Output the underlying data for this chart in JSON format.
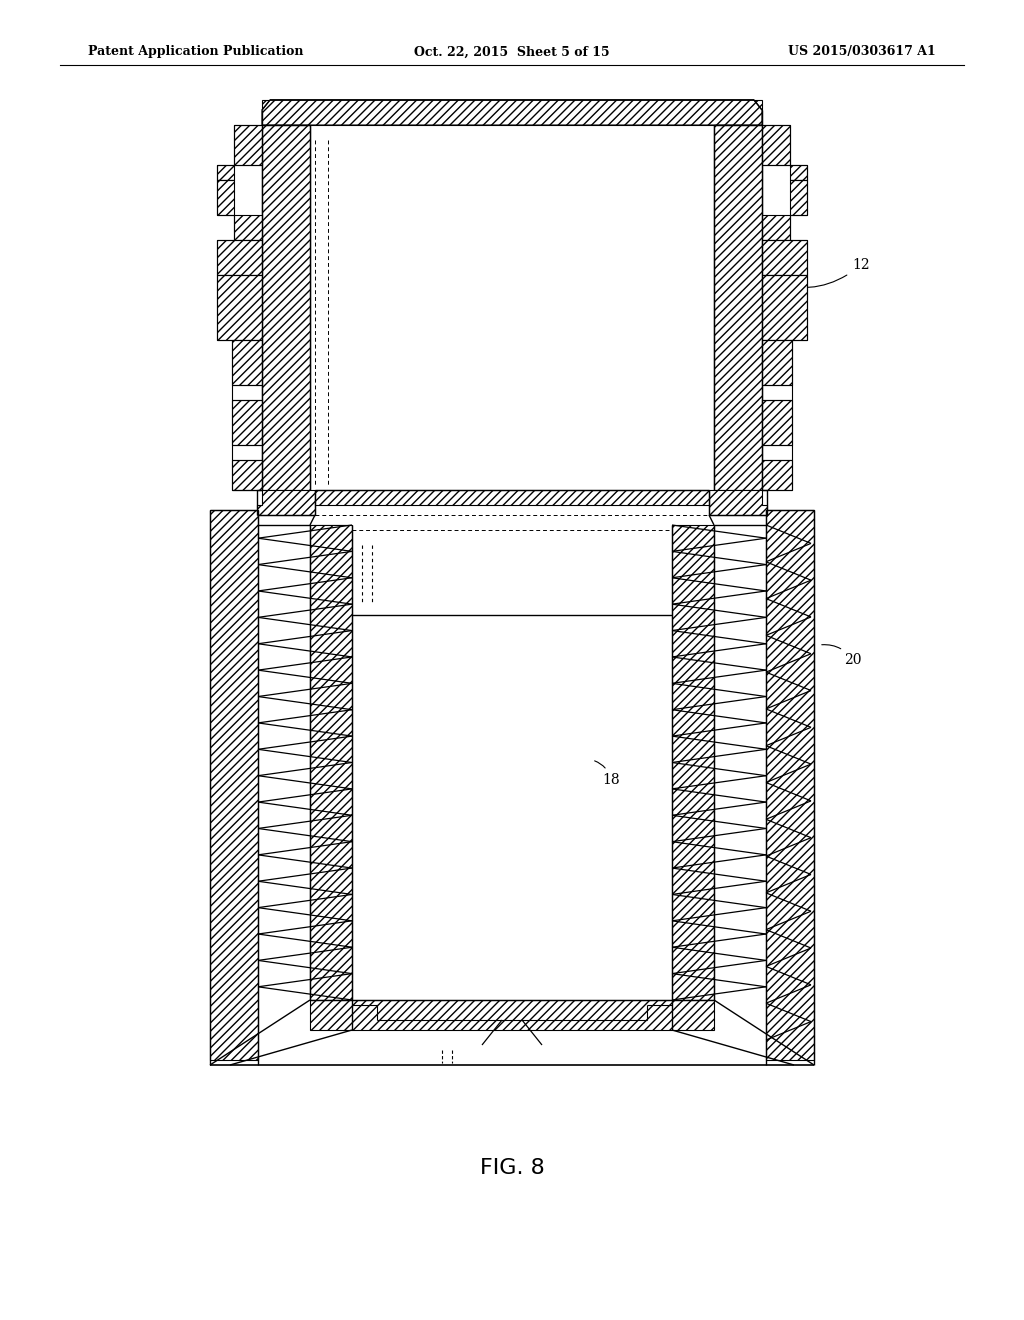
{
  "title_left": "Patent Application Publication",
  "title_center": "Oct. 22, 2015  Sheet 5 of 15",
  "title_right": "US 2015/0303617 A1",
  "fig_label": "FIG. 8",
  "label_12": "12",
  "label_18": "18",
  "label_20": "20",
  "bg_color": "#ffffff",
  "line_color": "#000000",
  "title_fontsize": 9,
  "fig_label_fontsize": 14,
  "hatch_density": "////"
}
